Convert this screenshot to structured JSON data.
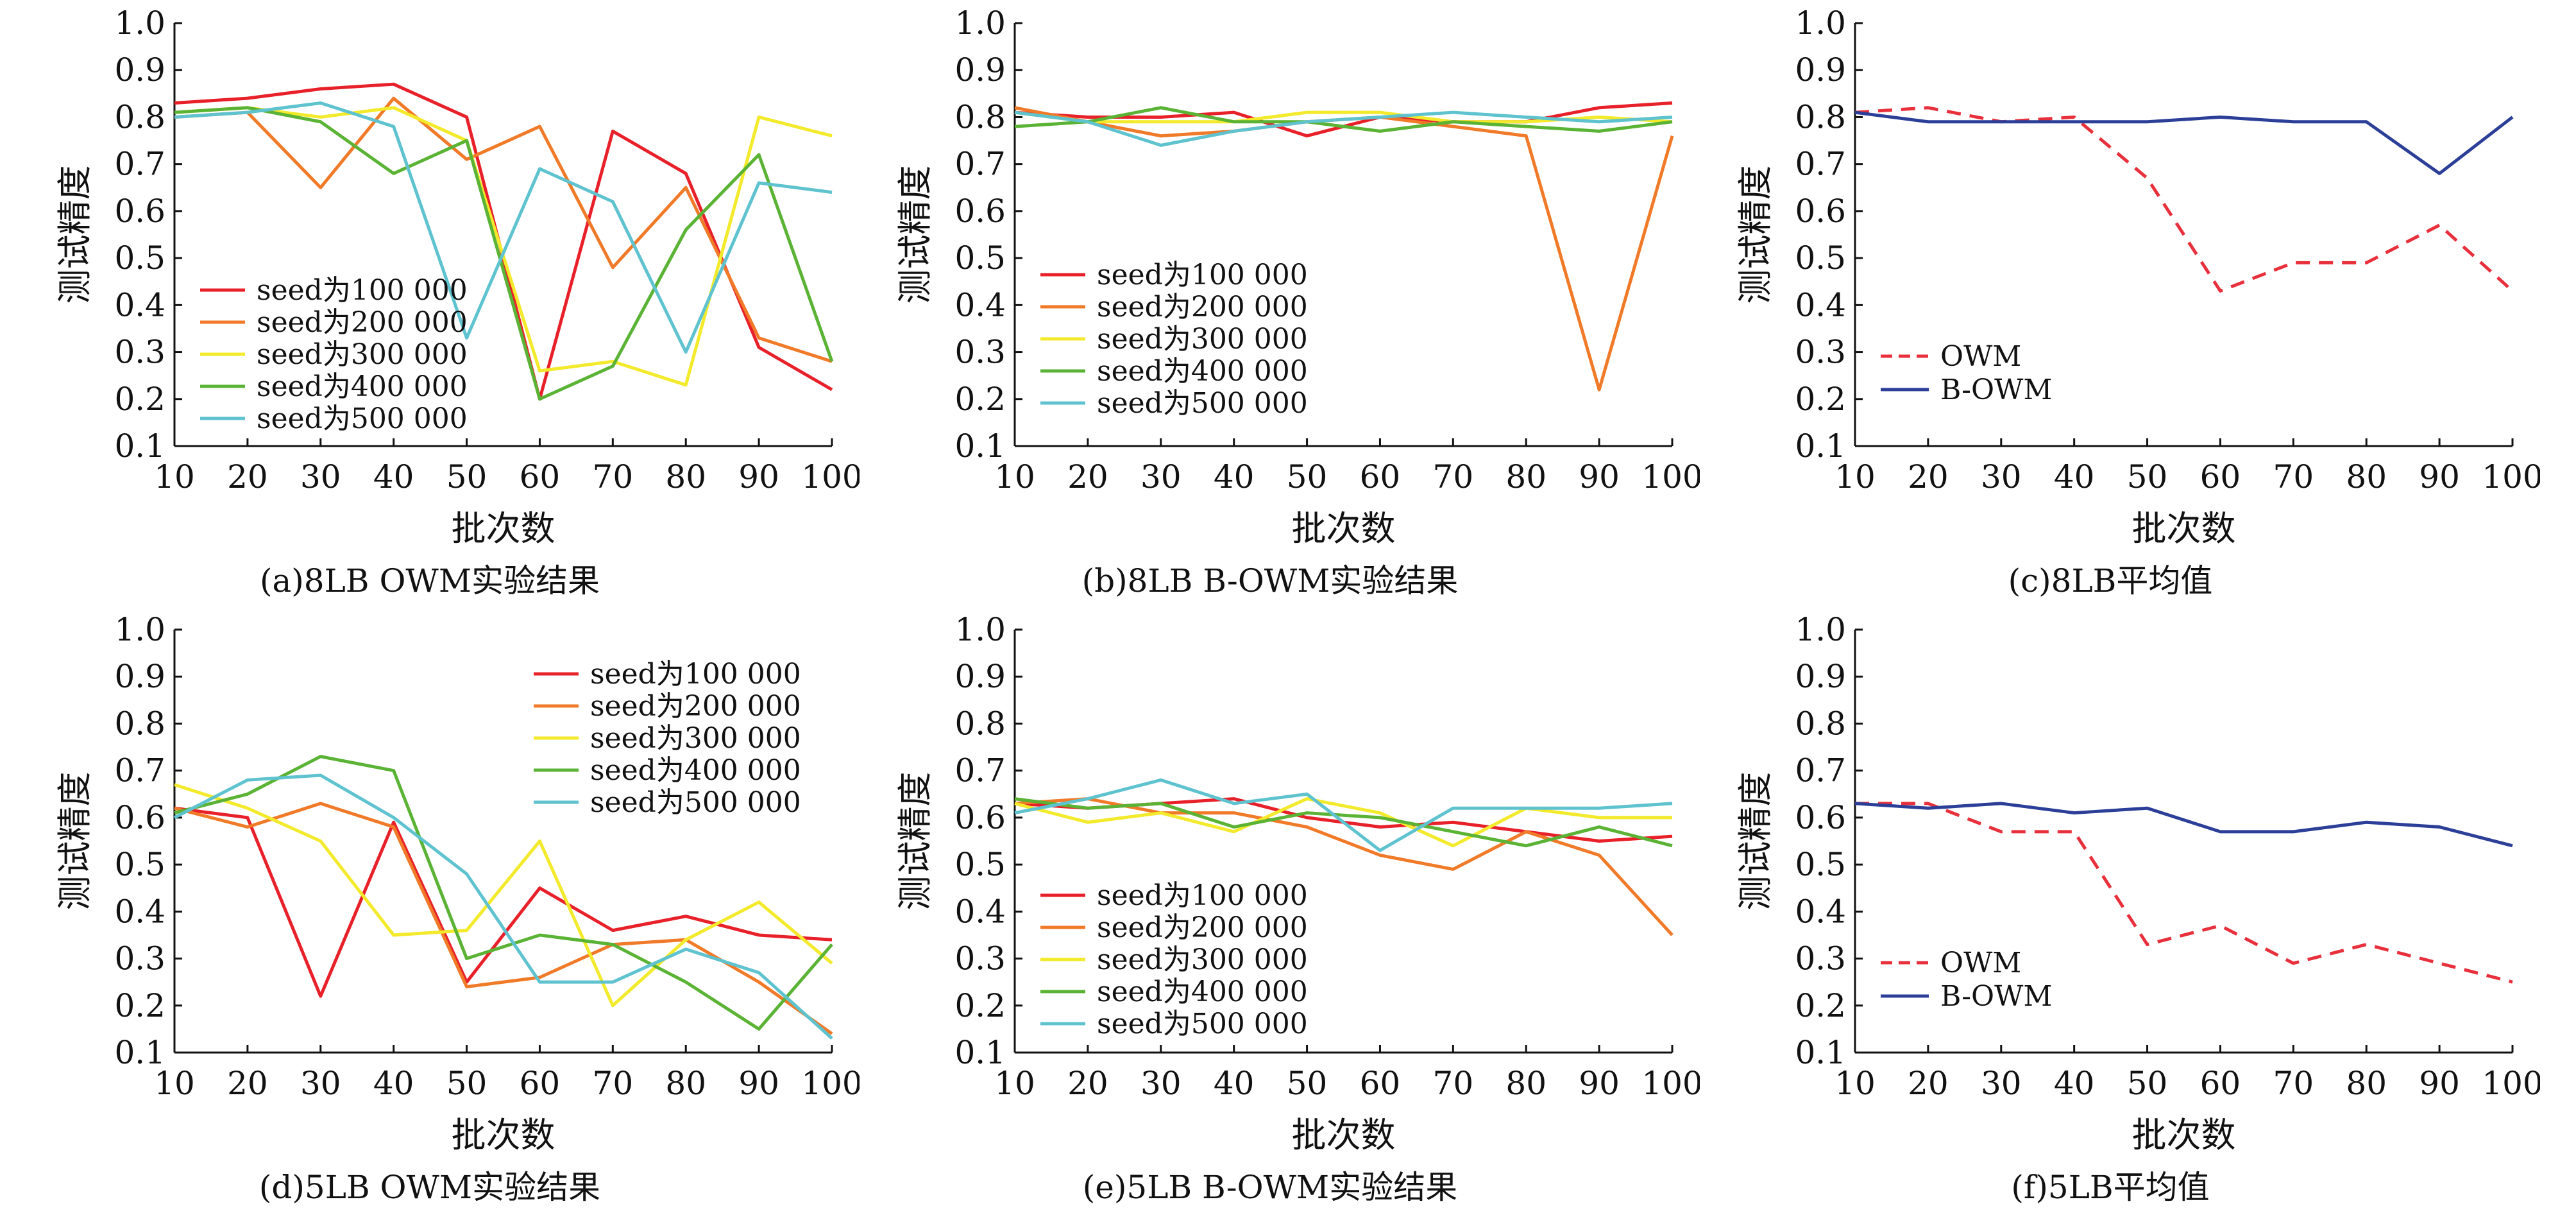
{
  "colors": {
    "seed100": "#e8202a",
    "seed200": "#f07a28",
    "seed300": "#f2ea2a",
    "seed400": "#5ab334",
    "seed500": "#5ec3cf",
    "owm": "#e8303c",
    "bowm": "#2c3f98",
    "axis": "#111111"
  },
  "chart_data": [
    {
      "type": "line",
      "caption": "(a)8LB OWM实验结果",
      "xlabel": "批次数",
      "ylabel": "测试精度",
      "x": [
        10,
        20,
        30,
        40,
        50,
        60,
        70,
        80,
        90,
        100
      ],
      "xticks": [
        "10",
        "20",
        "30",
        "40",
        "50",
        "60",
        "70",
        "80",
        "90",
        "100"
      ],
      "yticks": [
        "0.1",
        "0.2",
        "0.3",
        "0.4",
        "0.5",
        "0.6",
        "0.7",
        "0.8",
        "0.9",
        "1.0"
      ],
      "xlim": [
        10,
        100
      ],
      "ylim": [
        0.1,
        1.0
      ],
      "legend_position": "lower-left",
      "series": [
        {
          "name": "seed为100 000",
          "color": "seed100",
          "values": [
            0.83,
            0.84,
            0.86,
            0.87,
            0.8,
            0.2,
            0.77,
            0.68,
            0.31,
            0.22
          ]
        },
        {
          "name": "seed为200 000",
          "color": "seed200",
          "values": [
            0.8,
            0.81,
            0.65,
            0.84,
            0.71,
            0.78,
            0.48,
            0.65,
            0.33,
            0.28
          ]
        },
        {
          "name": "seed为300 000",
          "color": "seed300",
          "values": [
            0.81,
            0.82,
            0.8,
            0.82,
            0.75,
            0.26,
            0.28,
            0.23,
            0.8,
            0.76
          ]
        },
        {
          "name": "seed为400 000",
          "color": "seed400",
          "values": [
            0.81,
            0.82,
            0.79,
            0.68,
            0.75,
            0.2,
            0.27,
            0.56,
            0.72,
            0.28
          ]
        },
        {
          "name": "seed为500 000",
          "color": "seed500",
          "values": [
            0.8,
            0.81,
            0.83,
            0.78,
            0.33,
            0.69,
            0.62,
            0.3,
            0.66,
            0.64
          ]
        }
      ]
    },
    {
      "type": "line",
      "caption": "(b)8LB B-OWM实验结果",
      "xlabel": "批次数",
      "ylabel": "测试精度",
      "x": [
        10,
        20,
        30,
        40,
        50,
        60,
        70,
        80,
        90,
        100
      ],
      "xticks": [
        "10",
        "20",
        "30",
        "40",
        "50",
        "60",
        "70",
        "80",
        "90",
        "100"
      ],
      "yticks": [
        "0.1",
        "0.2",
        "0.3",
        "0.4",
        "0.5",
        "0.6",
        "0.7",
        "0.8",
        "0.9",
        "1.0"
      ],
      "xlim": [
        10,
        100
      ],
      "ylim": [
        0.1,
        1.0
      ],
      "legend_position": "lower-left",
      "series": [
        {
          "name": "seed为100 000",
          "color": "seed100",
          "values": [
            0.81,
            0.8,
            0.8,
            0.81,
            0.76,
            0.8,
            0.79,
            0.79,
            0.82,
            0.83
          ]
        },
        {
          "name": "seed为200 000",
          "color": "seed200",
          "values": [
            0.82,
            0.79,
            0.76,
            0.77,
            0.79,
            0.8,
            0.78,
            0.76,
            0.22,
            0.76
          ]
        },
        {
          "name": "seed为300 000",
          "color": "seed300",
          "values": [
            0.81,
            0.79,
            0.79,
            0.79,
            0.81,
            0.81,
            0.79,
            0.79,
            0.8,
            0.79
          ]
        },
        {
          "name": "seed为400 000",
          "color": "seed400",
          "values": [
            0.78,
            0.79,
            0.82,
            0.79,
            0.79,
            0.77,
            0.79,
            0.78,
            0.77,
            0.79
          ]
        },
        {
          "name": "seed为500 000",
          "color": "seed500",
          "values": [
            0.81,
            0.79,
            0.74,
            0.77,
            0.79,
            0.8,
            0.81,
            0.8,
            0.79,
            0.8
          ]
        }
      ]
    },
    {
      "type": "line",
      "caption": "(c)8LB平均值",
      "xlabel": "批次数",
      "ylabel": "测试精度",
      "x": [
        10,
        20,
        30,
        40,
        50,
        60,
        70,
        80,
        90,
        100
      ],
      "xticks": [
        "10",
        "20",
        "30",
        "40",
        "50",
        "60",
        "70",
        "80",
        "90",
        "100"
      ],
      "yticks": [
        "0.1",
        "0.2",
        "0.3",
        "0.4",
        "0.5",
        "0.6",
        "0.7",
        "0.8",
        "0.9",
        "1.0"
      ],
      "xlim": [
        10,
        100
      ],
      "ylim": [
        0.1,
        1.0
      ],
      "legend_position": "lower-left",
      "series": [
        {
          "name": "OWM",
          "color": "owm",
          "dashed": true,
          "values": [
            0.81,
            0.82,
            0.79,
            0.8,
            0.67,
            0.43,
            0.49,
            0.49,
            0.57,
            0.43
          ]
        },
        {
          "name": "B-OWM",
          "color": "bowm",
          "dashed": false,
          "values": [
            0.81,
            0.79,
            0.79,
            0.79,
            0.79,
            0.8,
            0.79,
            0.79,
            0.68,
            0.8
          ]
        }
      ]
    },
    {
      "type": "line",
      "caption": "(d)5LB OWM实验结果",
      "xlabel": "批次数",
      "ylabel": "测试精度",
      "x": [
        10,
        20,
        30,
        40,
        50,
        60,
        70,
        80,
        90,
        100
      ],
      "xticks": [
        "10",
        "20",
        "30",
        "40",
        "50",
        "60",
        "70",
        "80",
        "90",
        "100"
      ],
      "yticks": [
        "0.1",
        "0.2",
        "0.3",
        "0.4",
        "0.5",
        "0.6",
        "0.7",
        "0.8",
        "0.9",
        "1.0"
      ],
      "xlim": [
        10,
        100
      ],
      "ylim": [
        0.1,
        1.0
      ],
      "legend_position": "upper-right",
      "series": [
        {
          "name": "seed为100 000",
          "color": "seed100",
          "values": [
            0.62,
            0.6,
            0.22,
            0.59,
            0.25,
            0.45,
            0.36,
            0.39,
            0.35,
            0.34
          ]
        },
        {
          "name": "seed为200 000",
          "color": "seed200",
          "values": [
            0.62,
            0.58,
            0.63,
            0.58,
            0.24,
            0.26,
            0.33,
            0.34,
            0.25,
            0.14
          ]
        },
        {
          "name": "seed为300 000",
          "color": "seed300",
          "values": [
            0.67,
            0.62,
            0.55,
            0.35,
            0.36,
            0.55,
            0.2,
            0.34,
            0.42,
            0.29
          ]
        },
        {
          "name": "seed为400 000",
          "color": "seed400",
          "values": [
            0.61,
            0.65,
            0.73,
            0.7,
            0.3,
            0.35,
            0.33,
            0.25,
            0.15,
            0.33
          ]
        },
        {
          "name": "seed为500 000",
          "color": "seed500",
          "values": [
            0.6,
            0.68,
            0.69,
            0.6,
            0.48,
            0.25,
            0.25,
            0.32,
            0.27,
            0.13
          ]
        }
      ]
    },
    {
      "type": "line",
      "caption": "(e)5LB B-OWM实验结果",
      "xlabel": "批次数",
      "ylabel": "测试精度",
      "x": [
        10,
        20,
        30,
        40,
        50,
        60,
        70,
        80,
        90,
        100
      ],
      "xticks": [
        "10",
        "20",
        "30",
        "40",
        "50",
        "60",
        "70",
        "80",
        "90",
        "100"
      ],
      "yticks": [
        "0.1",
        "0.2",
        "0.3",
        "0.4",
        "0.5",
        "0.6",
        "0.7",
        "0.8",
        "0.9",
        "1.0"
      ],
      "xlim": [
        10,
        100
      ],
      "ylim": [
        0.1,
        1.0
      ],
      "legend_position": "lower-left",
      "series": [
        {
          "name": "seed为100 000",
          "color": "seed100",
          "values": [
            0.63,
            0.62,
            0.63,
            0.64,
            0.6,
            0.58,
            0.59,
            0.57,
            0.55,
            0.56
          ]
        },
        {
          "name": "seed为200 000",
          "color": "seed200",
          "values": [
            0.63,
            0.64,
            0.61,
            0.61,
            0.58,
            0.52,
            0.49,
            0.57,
            0.52,
            0.35
          ]
        },
        {
          "name": "seed为300 000",
          "color": "seed300",
          "values": [
            0.63,
            0.59,
            0.61,
            0.57,
            0.64,
            0.61,
            0.54,
            0.62,
            0.6,
            0.6
          ]
        },
        {
          "name": "seed为400 000",
          "color": "seed400",
          "values": [
            0.64,
            0.62,
            0.63,
            0.58,
            0.61,
            0.6,
            0.57,
            0.54,
            0.58,
            0.54
          ]
        },
        {
          "name": "seed为500 000",
          "color": "seed500",
          "values": [
            0.61,
            0.64,
            0.68,
            0.63,
            0.65,
            0.53,
            0.62,
            0.62,
            0.62,
            0.63
          ]
        }
      ]
    },
    {
      "type": "line",
      "caption": "(f)5LB平均值",
      "xlabel": "批次数",
      "ylabel": "测试精度",
      "x": [
        10,
        20,
        30,
        40,
        50,
        60,
        70,
        80,
        90,
        100
      ],
      "xticks": [
        "10",
        "20",
        "30",
        "40",
        "50",
        "60",
        "70",
        "80",
        "90",
        "100"
      ],
      "yticks": [
        "0.1",
        "0.2",
        "0.3",
        "0.4",
        "0.5",
        "0.6",
        "0.7",
        "0.8",
        "0.9",
        "1.0"
      ],
      "xlim": [
        10,
        100
      ],
      "ylim": [
        0.1,
        1.0
      ],
      "legend_position": "lower-left",
      "series": [
        {
          "name": "OWM",
          "color": "owm",
          "dashed": true,
          "values": [
            0.63,
            0.63,
            0.57,
            0.57,
            0.33,
            0.37,
            0.29,
            0.33,
            0.29,
            0.25
          ]
        },
        {
          "name": "B-OWM",
          "color": "bowm",
          "dashed": false,
          "values": [
            0.63,
            0.62,
            0.63,
            0.61,
            0.62,
            0.57,
            0.57,
            0.59,
            0.58,
            0.54
          ]
        }
      ]
    }
  ]
}
